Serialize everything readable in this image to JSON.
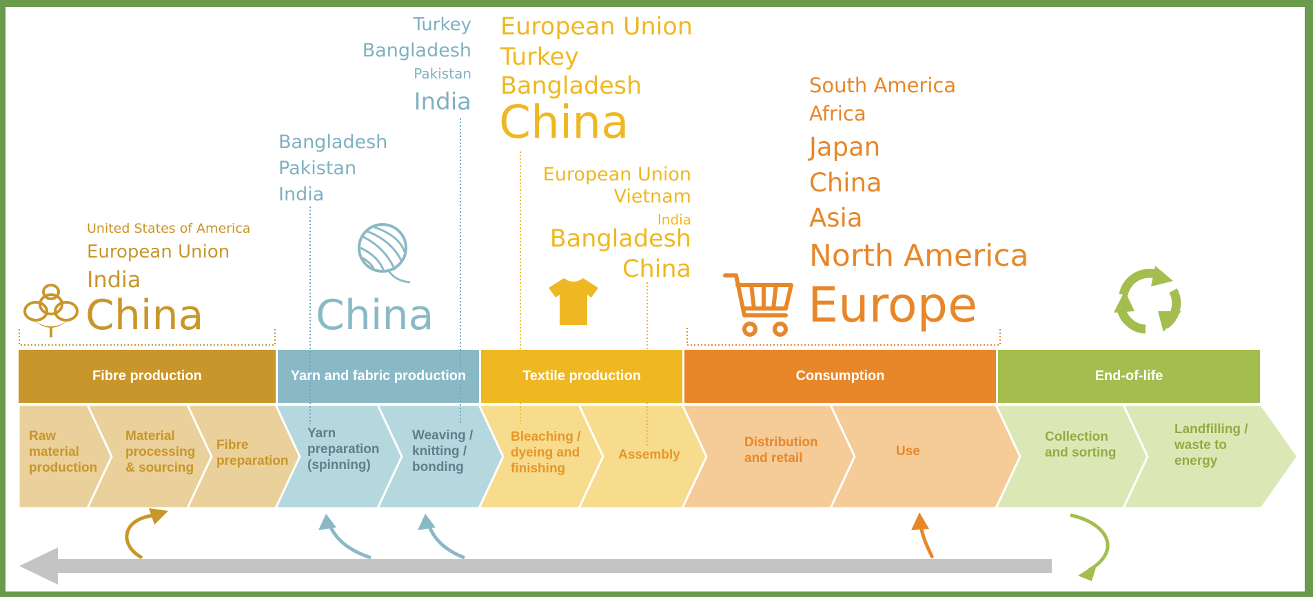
{
  "colors": {
    "fibre": "#c8962a",
    "fibre_light": "#ead09a",
    "yarn": "#8ab9c6",
    "yarn_light": "#b5d7de",
    "textile": "#efb822",
    "textile_light": "#f6dc8c",
    "consumption": "#e8872a",
    "consumption_light": "#f5cb98",
    "eol": "#a3be4e",
    "eol_light": "#dbe8b6",
    "return_arrow": "#c4c4c4",
    "frame": "#6a9a4c"
  },
  "stages": [
    {
      "title": "Fibre production",
      "steps": [
        "Raw\nmaterial\nproduction",
        "Material\nprocessing\n& sourcing",
        "Fibre\npreparation"
      ]
    },
    {
      "title": "Yarn and fabric\nproduction",
      "steps": [
        "Yarn\npreparation\n(spinning)",
        "Weaving /\nknitting /\nbonding"
      ]
    },
    {
      "title": "Textile\nproduction",
      "steps": [
        "Bleaching /\ndyeing and\nfinishing",
        "Assembly"
      ]
    },
    {
      "title": "Consumption",
      "steps": [
        "Distribution\nand retail",
        "Use"
      ]
    },
    {
      "title": "End-of-life",
      "steps": [
        "Collection\nand sorting",
        "Landfilling /\nwaste to\nenergy"
      ]
    }
  ],
  "regions": {
    "fibre": [
      "United States of America",
      "European Union",
      "India",
      "China"
    ],
    "spinning": [
      "Bangladesh",
      "Pakistan",
      "India"
    ],
    "yarn_main": [
      "China"
    ],
    "weaving": [
      "Turkey",
      "Bangladesh",
      "Pakistan",
      "India"
    ],
    "finishing": [
      "European Union",
      "Turkey",
      "Bangladesh",
      "China"
    ],
    "assembly": [
      "European Union",
      "Vietnam",
      "India",
      "Bangladesh",
      "China"
    ],
    "consumption": [
      "South America",
      "Africa",
      "Japan",
      "China",
      "Asia",
      "North America",
      "Europe"
    ]
  },
  "icons": [
    "cotton-flower-icon",
    "yarn-ball-icon",
    "t-shirt-icon",
    "shopping-cart-icon",
    "recycle-icon"
  ]
}
